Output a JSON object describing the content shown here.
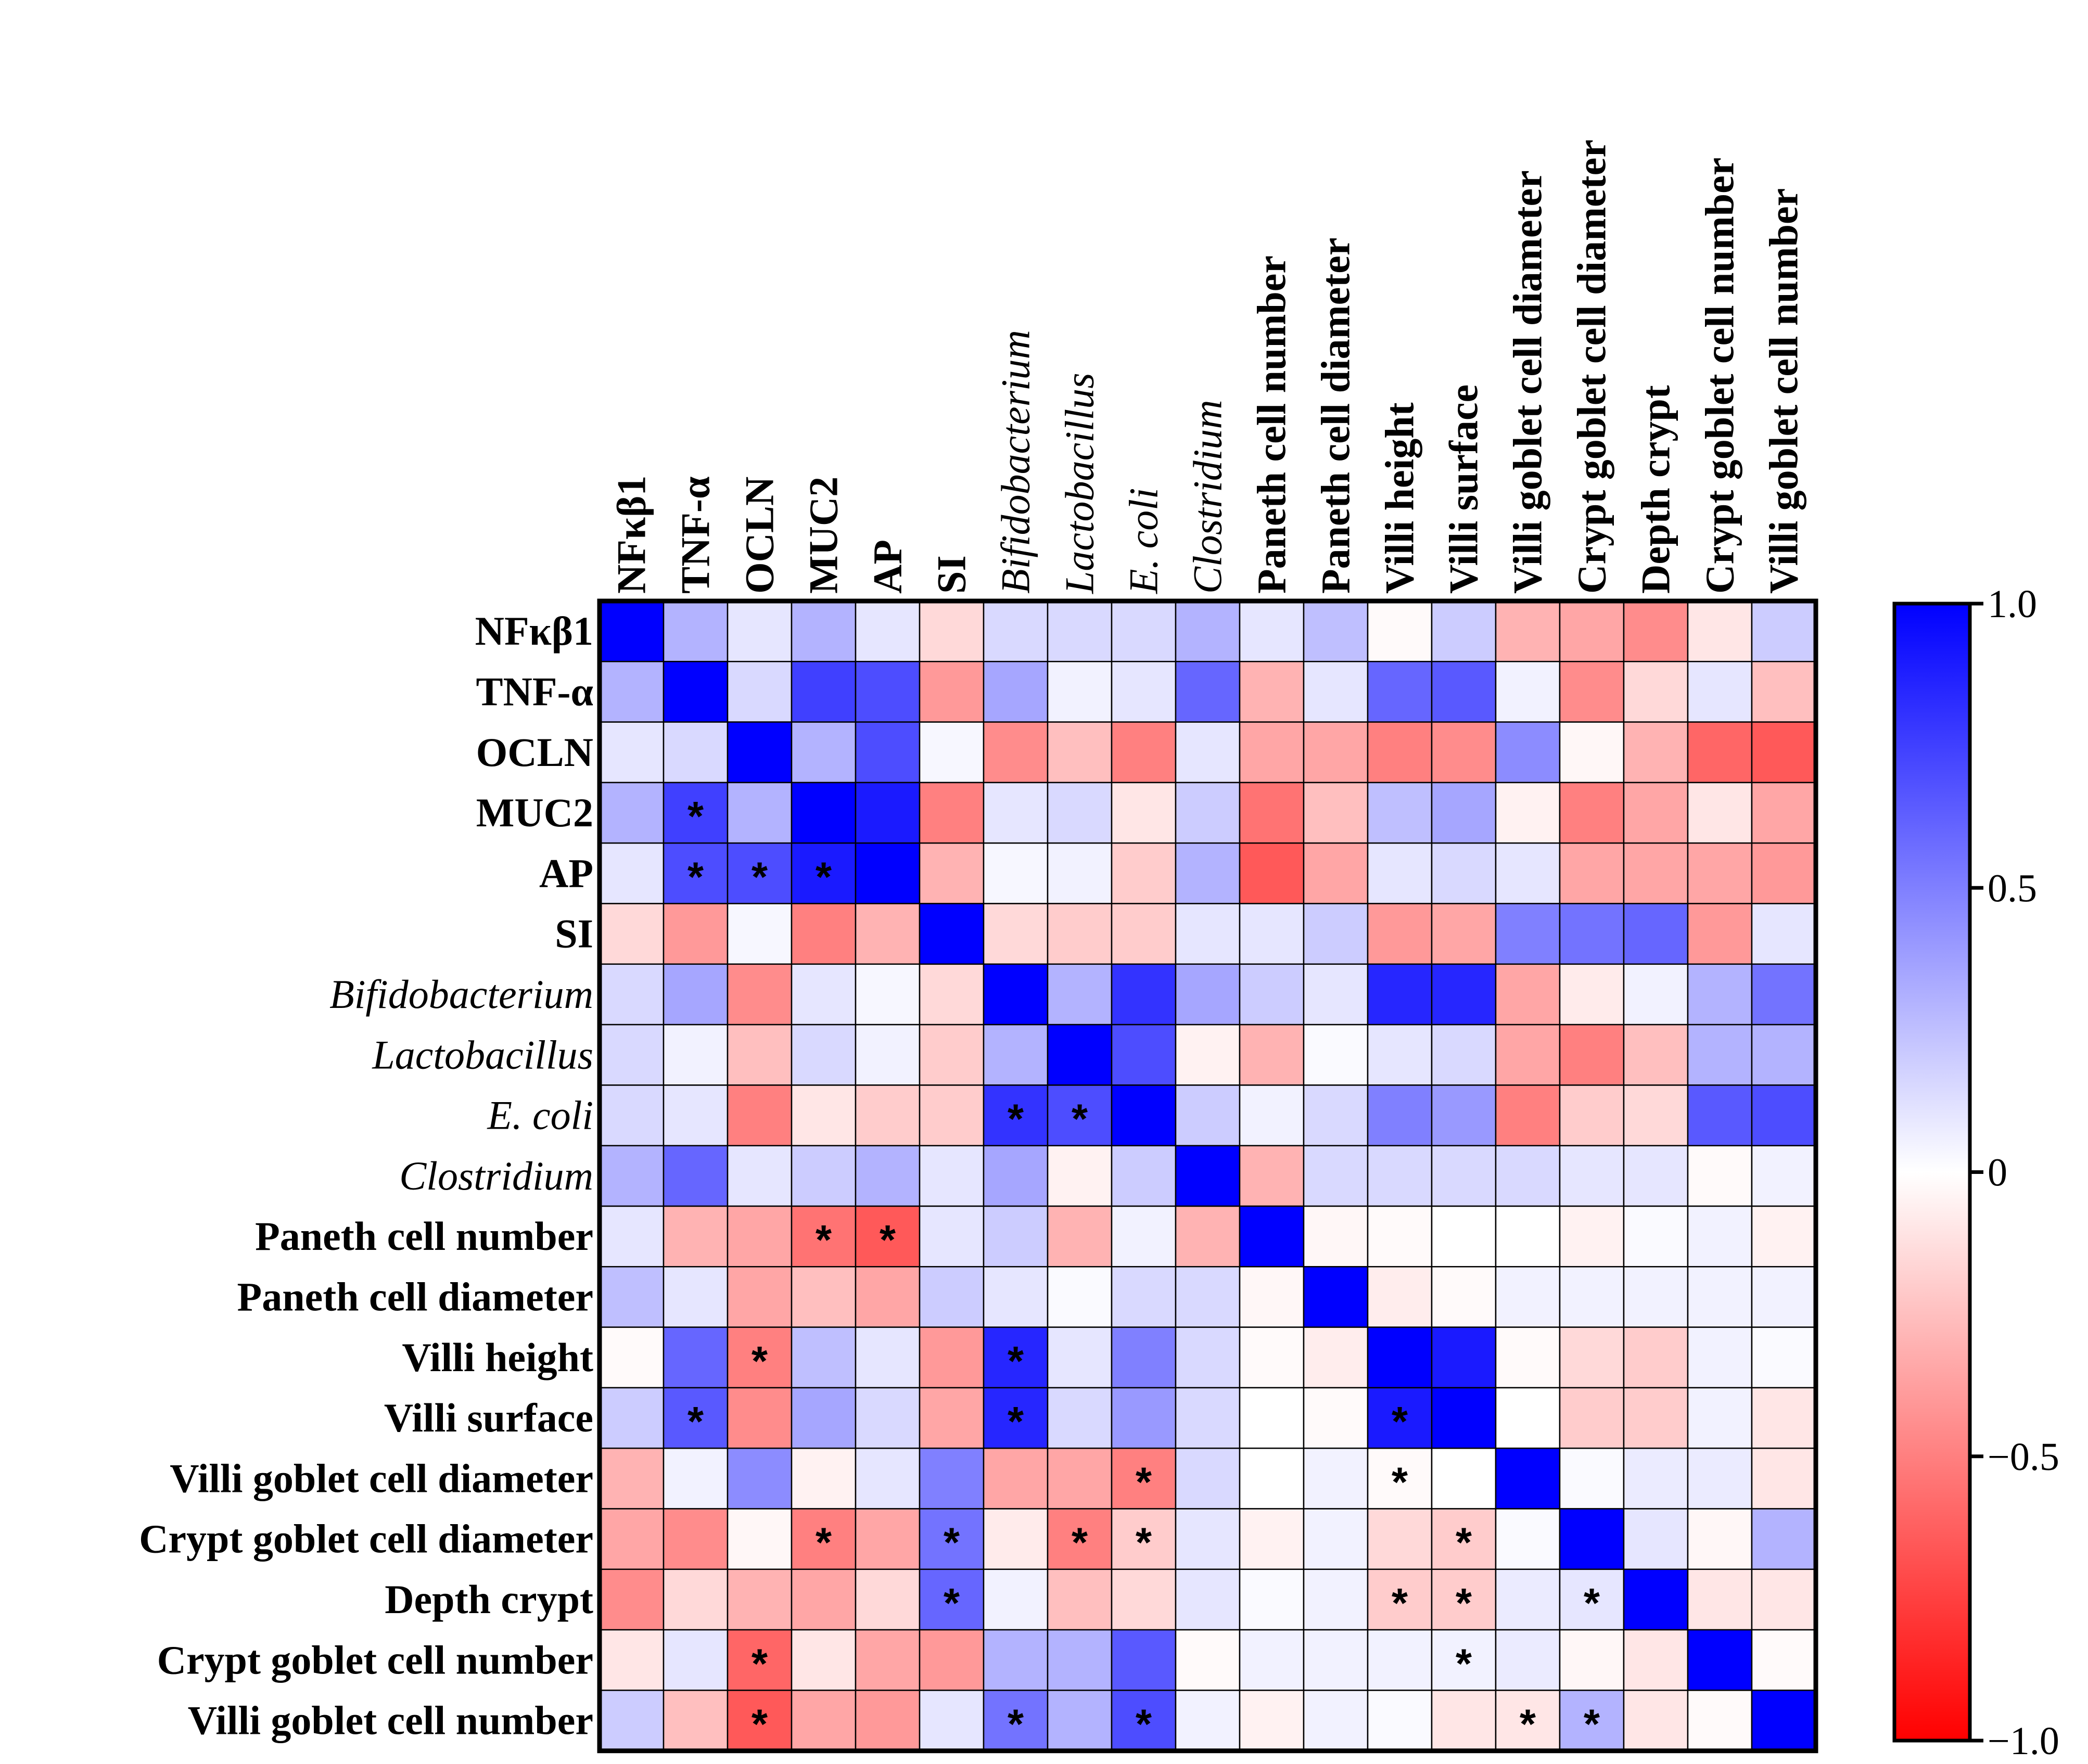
{
  "chart_data": {
    "type": "heatmap",
    "variables": [
      {
        "label": "NFκβ1",
        "italic": false
      },
      {
        "label": "TNF-α",
        "italic": false
      },
      {
        "label": "OCLN",
        "italic": false
      },
      {
        "label": "MUC2",
        "italic": false
      },
      {
        "label": "AP",
        "italic": false
      },
      {
        "label": "SI",
        "italic": false
      },
      {
        "label": "Bifidobacterium",
        "italic": true
      },
      {
        "label": "Lactobacillus",
        "italic": true
      },
      {
        "label": "E. coli",
        "italic": true
      },
      {
        "label": "Clostridium",
        "italic": true
      },
      {
        "label": "Paneth cell number",
        "italic": false
      },
      {
        "label": "Paneth cell diameter",
        "italic": false
      },
      {
        "label": "Villi height",
        "italic": false
      },
      {
        "label": "Villi surface",
        "italic": false
      },
      {
        "label": "Villi goblet cell diameter",
        "italic": false
      },
      {
        "label": "Crypt goblet cell diameter",
        "italic": false
      },
      {
        "label": "Depth crypt",
        "italic": false
      },
      {
        "label": "Crypt goblet cell number",
        "italic": false
      },
      {
        "label": "Villi goblet cell number",
        "italic": false
      }
    ],
    "matrix": [
      [
        1.0,
        0.3,
        0.1,
        0.3,
        0.1,
        -0.15,
        0.15,
        0.15,
        0.15,
        0.3,
        0.1,
        0.25,
        -0.02,
        0.2,
        -0.3,
        -0.35,
        -0.45,
        -0.1,
        0.2
      ],
      [
        0.3,
        1.0,
        0.15,
        0.75,
        0.7,
        -0.4,
        0.35,
        0.05,
        0.1,
        0.6,
        -0.3,
        0.1,
        0.6,
        0.65,
        0.05,
        -0.45,
        -0.15,
        0.1,
        -0.25
      ],
      [
        0.1,
        0.15,
        1.0,
        0.3,
        0.7,
        0.03,
        -0.45,
        -0.25,
        -0.5,
        0.1,
        -0.35,
        -0.35,
        -0.5,
        -0.45,
        0.45,
        -0.03,
        -0.3,
        -0.6,
        -0.65
      ],
      [
        0.3,
        0.75,
        0.3,
        1.0,
        0.9,
        -0.5,
        0.1,
        0.15,
        -0.1,
        0.2,
        -0.55,
        -0.25,
        0.25,
        0.35,
        -0.05,
        -0.5,
        -0.35,
        -0.1,
        -0.35
      ],
      [
        0.1,
        0.7,
        0.7,
        0.9,
        1.0,
        -0.3,
        0.03,
        0.05,
        -0.2,
        0.3,
        -0.65,
        -0.35,
        0.1,
        0.15,
        0.1,
        -0.35,
        -0.35,
        -0.35,
        -0.4
      ],
      [
        -0.15,
        -0.4,
        0.03,
        -0.5,
        -0.3,
        1.0,
        -0.15,
        -0.2,
        -0.2,
        0.1,
        0.1,
        0.2,
        -0.4,
        -0.35,
        0.5,
        0.55,
        0.6,
        -0.4,
        0.1
      ],
      [
        0.15,
        0.35,
        -0.45,
        0.1,
        0.03,
        -0.15,
        1.0,
        0.3,
        0.8,
        0.35,
        0.2,
        0.1,
        0.85,
        0.85,
        -0.35,
        -0.08,
        0.05,
        0.3,
        0.55
      ],
      [
        0.15,
        0.05,
        -0.25,
        0.15,
        0.05,
        -0.2,
        0.3,
        1.0,
        0.7,
        -0.05,
        -0.3,
        0.02,
        0.1,
        0.15,
        -0.35,
        -0.5,
        -0.25,
        0.3,
        0.3
      ],
      [
        0.15,
        0.1,
        -0.5,
        -0.1,
        -0.2,
        -0.2,
        0.8,
        0.7,
        1.0,
        0.2,
        0.05,
        0.15,
        0.5,
        0.4,
        -0.5,
        -0.2,
        -0.15,
        0.65,
        0.7
      ],
      [
        0.3,
        0.6,
        0.1,
        0.2,
        0.3,
        0.1,
        0.35,
        -0.05,
        0.2,
        1.0,
        -0.3,
        0.15,
        0.15,
        0.15,
        0.15,
        0.1,
        0.1,
        -0.02,
        0.05
      ],
      [
        0.1,
        -0.3,
        -0.35,
        -0.55,
        -0.65,
        0.1,
        0.2,
        -0.3,
        0.05,
        -0.3,
        1.0,
        -0.03,
        -0.02,
        0.0,
        0.0,
        -0.05,
        0.02,
        0.05,
        -0.05
      ],
      [
        0.25,
        0.1,
        -0.35,
        -0.25,
        -0.35,
        0.2,
        0.1,
        0.02,
        0.15,
        0.15,
        -0.03,
        1.0,
        -0.07,
        -0.02,
        0.05,
        0.05,
        0.05,
        0.05,
        0.05
      ],
      [
        -0.02,
        0.6,
        -0.5,
        0.25,
        0.1,
        -0.4,
        0.85,
        0.1,
        0.5,
        0.15,
        -0.02,
        -0.07,
        1.0,
        0.9,
        -0.02,
        -0.15,
        -0.2,
        0.05,
        0.02
      ],
      [
        0.2,
        0.65,
        -0.45,
        0.35,
        0.15,
        -0.35,
        0.85,
        0.15,
        0.4,
        0.15,
        0.0,
        -0.02,
        0.9,
        1.0,
        0.0,
        -0.2,
        -0.2,
        0.05,
        -0.1
      ],
      [
        -0.3,
        0.05,
        0.45,
        -0.05,
        0.1,
        0.5,
        -0.35,
        -0.35,
        -0.5,
        0.15,
        0.0,
        0.05,
        -0.02,
        0.0,
        1.0,
        0.02,
        0.08,
        0.08,
        -0.1
      ],
      [
        -0.35,
        -0.45,
        -0.03,
        -0.5,
        -0.35,
        0.55,
        -0.08,
        -0.5,
        -0.2,
        0.1,
        -0.05,
        0.05,
        -0.15,
        -0.2,
        0.02,
        1.0,
        0.1,
        -0.03,
        0.3
      ],
      [
        -0.45,
        -0.15,
        -0.3,
        -0.35,
        -0.15,
        0.6,
        0.05,
        -0.25,
        -0.15,
        0.1,
        0.02,
        0.05,
        -0.2,
        -0.2,
        0.08,
        0.1,
        1.0,
        -0.1,
        -0.1
      ],
      [
        -0.1,
        0.1,
        -0.6,
        -0.1,
        -0.35,
        -0.4,
        0.3,
        0.3,
        0.65,
        -0.02,
        0.05,
        0.05,
        0.05,
        0.05,
        0.08,
        -0.03,
        -0.1,
        1.0,
        -0.02
      ],
      [
        0.2,
        -0.25,
        -0.65,
        -0.35,
        -0.4,
        0.1,
        0.55,
        0.3,
        0.7,
        0.05,
        -0.05,
        0.05,
        0.02,
        -0.1,
        -0.1,
        0.3,
        -0.1,
        -0.02,
        1.0
      ]
    ],
    "significance": [
      [
        3,
        1
      ],
      [
        4,
        1
      ],
      [
        4,
        2
      ],
      [
        4,
        3
      ],
      [
        8,
        6
      ],
      [
        8,
        7
      ],
      [
        10,
        3
      ],
      [
        10,
        4
      ],
      [
        12,
        2
      ],
      [
        12,
        6
      ],
      [
        13,
        1
      ],
      [
        13,
        6
      ],
      [
        13,
        12
      ],
      [
        14,
        8
      ],
      [
        14,
        12
      ],
      [
        15,
        3
      ],
      [
        15,
        5
      ],
      [
        15,
        7
      ],
      [
        15,
        8
      ],
      [
        15,
        13
      ],
      [
        16,
        5
      ],
      [
        16,
        12
      ],
      [
        16,
        13
      ],
      [
        16,
        15
      ],
      [
        17,
        2
      ],
      [
        17,
        13
      ],
      [
        18,
        2
      ],
      [
        18,
        6
      ],
      [
        18,
        8
      ],
      [
        18,
        14
      ],
      [
        18,
        15
      ]
    ],
    "significance_marker": "*",
    "colorbar": {
      "range": [
        -1.0,
        1.0
      ],
      "ticks": [
        {
          "value": 1.0,
          "label": "1.0"
        },
        {
          "value": 0.5,
          "label": "0.5"
        },
        {
          "value": 0.0,
          "label": "0"
        },
        {
          "value": -0.5,
          "label": "−0.5"
        },
        {
          "value": -1.0,
          "label": "−1.0"
        }
      ],
      "colors": {
        "positive": "#0000ff",
        "zero": "#ffffff",
        "negative": "#ff0000"
      }
    }
  }
}
